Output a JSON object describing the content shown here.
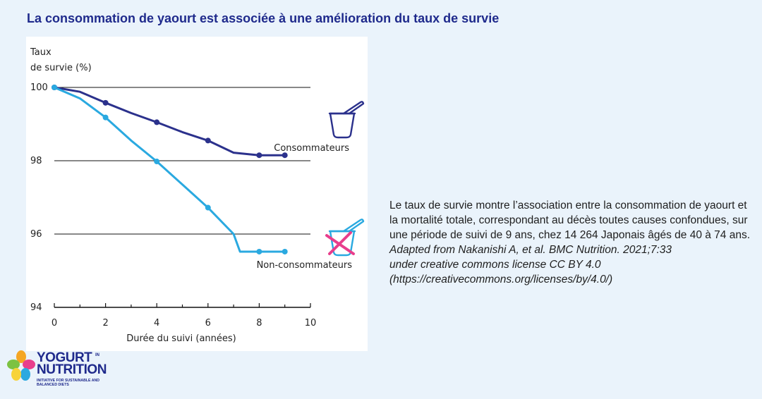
{
  "page": {
    "title": "La consommation de yaourt est associée à une amélioration du taux de survie"
  },
  "chart_data": {
    "type": "line",
    "ylabel_line1": "Taux",
    "ylabel_line2": "de survie (%)",
    "xlabel": "Durée du suivi (années)",
    "xlim": [
      0,
      10
    ],
    "ylim": [
      94,
      100
    ],
    "xticks": [
      0,
      2,
      4,
      6,
      8,
      10
    ],
    "yticks": [
      94,
      96,
      98,
      100
    ],
    "grid": true,
    "series": [
      {
        "name": "Consommateurs",
        "color": "#2b318c",
        "x": [
          0,
          1,
          2,
          3,
          4,
          5,
          6,
          7,
          8,
          9
        ],
        "y": [
          100,
          99.88,
          99.58,
          99.3,
          99.05,
          98.78,
          98.55,
          98.22,
          98.15,
          98.15
        ],
        "marker_x": [
          0,
          2,
          4,
          6,
          8,
          9
        ]
      },
      {
        "name": "Non-consommateurs",
        "color": "#2aa9e0",
        "x": [
          0,
          1,
          2,
          3,
          4,
          5,
          6,
          7,
          7.25,
          8,
          9
        ],
        "y": [
          100,
          99.7,
          99.18,
          98.55,
          97.98,
          97.35,
          96.72,
          96.0,
          95.52,
          95.52,
          95.52
        ],
        "marker_x": [
          0,
          2,
          4,
          6,
          8,
          9
        ]
      }
    ],
    "icons": {
      "consumers": "yogurt-cup-icon",
      "non_consumers": "crossed-yogurt-cup-icon",
      "cross_color": "#e83e8c"
    }
  },
  "description": {
    "text": "Le taux de survie montre l’association entre la consommation de yaourt et la mortalité totale, correspondant au décès toutes causes confondues, sur une période de suivi de 9 ans, chez 14 264 Japonais âgés de 40 à 74 ans.",
    "citation_line1": "Adapted from Nakanishi A, et al. BMC Nutrition. 2021;7:33",
    "citation_line2": "under creative commons license CC BY 4.0",
    "citation_line3": "(https://creativecommons.org/licenses/by/4.0/)"
  },
  "logo": {
    "line1": "YOGURT",
    "superscript": "IN",
    "line2": "NUTRITION",
    "tagline": "Initiative for sustainable and balanced diets"
  }
}
